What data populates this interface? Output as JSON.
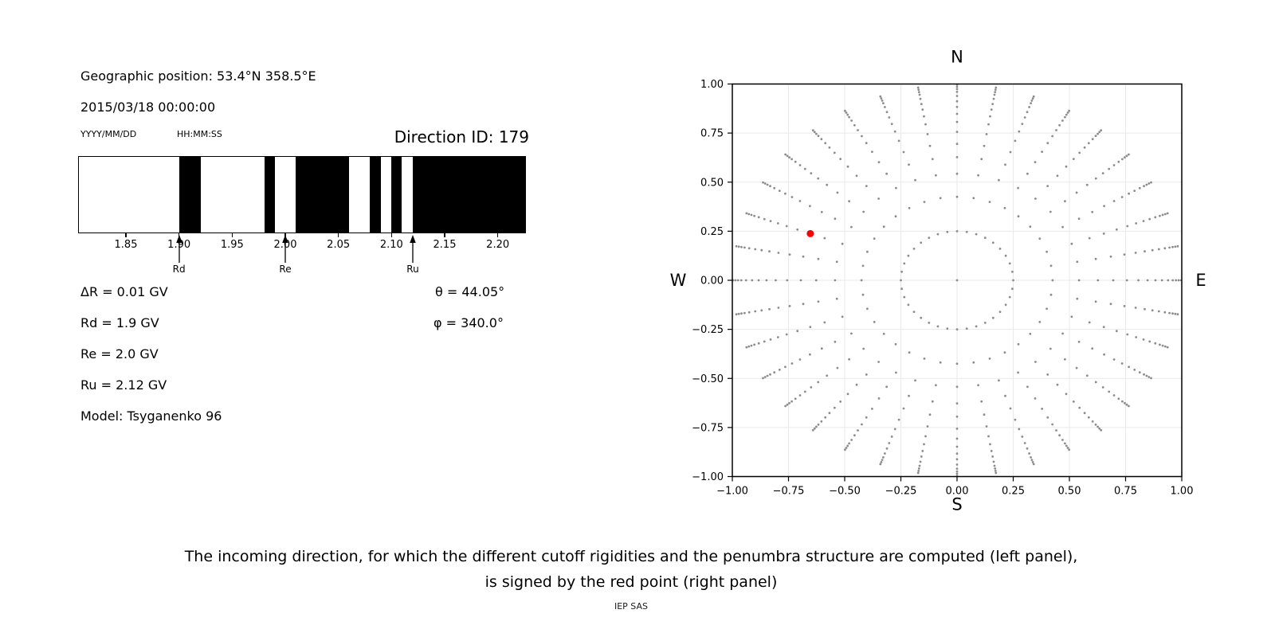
{
  "header": {
    "geographic_position": "Geographic position: 53.4°N 358.5°E",
    "datetime": "2015/03/18 00:00:00",
    "date_format_label": "YYYY/MM/DD",
    "time_format_label": "HH:MM:SS",
    "direction_id": "Direction ID: 179"
  },
  "info": {
    "delta_r": "ΔR = 0.01 GV",
    "rd": "Rd = 1.9 GV",
    "re": "Re = 2.0 GV",
    "ru": "Ru = 2.12 GV",
    "model": "Model: Tsyganenko 96",
    "theta": "θ = 44.05°",
    "phi": "φ = 340.0°"
  },
  "caption": {
    "line1": "The incoming direction, for which the different cutoff rigidities and the penumbra structure are computed (left panel),",
    "line2": "is signed by the red point (right panel)",
    "credit": "IEP SAS"
  },
  "colors": {
    "band_black": "#000000",
    "dot_gray": "#8c8c8c",
    "red_point": "#ff0000",
    "grid": "#e9e9e9",
    "spine": "#000000"
  },
  "chart_data": [
    {
      "id": "penumbra",
      "type": "bar",
      "xlim": [
        1.805,
        2.2265
      ],
      "xticks": [
        {
          "v": 1.85,
          "label": "1.85"
        },
        {
          "v": 1.9,
          "label": "1.90"
        },
        {
          "v": 1.95,
          "label": "1.95"
        },
        {
          "v": 2.0,
          "label": "2.00"
        },
        {
          "v": 2.05,
          "label": "2.05"
        },
        {
          "v": 2.1,
          "label": "2.10"
        },
        {
          "v": 2.15,
          "label": "2.15"
        },
        {
          "v": 2.2,
          "label": "2.20"
        }
      ],
      "black_intervals": [
        [
          1.9,
          1.92
        ],
        [
          1.98,
          1.99
        ],
        [
          2.01,
          2.06
        ],
        [
          2.08,
          2.09
        ],
        [
          2.1,
          2.11
        ],
        [
          2.12,
          2.2265
        ]
      ],
      "markers": [
        {
          "label": "Rd",
          "value": 1.9
        },
        {
          "label": "Re",
          "value": 2.0
        },
        {
          "label": "Ru",
          "value": 2.12
        }
      ]
    },
    {
      "id": "direction-map",
      "type": "scatter",
      "xlim": [
        -1.0,
        1.0
      ],
      "ylim": [
        -1.0,
        1.0
      ],
      "grid": true,
      "xticks": [
        {
          "v": -1.0,
          "label": "−1.00"
        },
        {
          "v": -0.75,
          "label": "−0.75"
        },
        {
          "v": -0.5,
          "label": "−0.50"
        },
        {
          "v": -0.25,
          "label": "−0.25"
        },
        {
          "v": 0.0,
          "label": "0.00"
        },
        {
          "v": 0.25,
          "label": "0.25"
        },
        {
          "v": 0.5,
          "label": "0.50"
        },
        {
          "v": 0.75,
          "label": "0.75"
        },
        {
          "v": 1.0,
          "label": "1.00"
        }
      ],
      "yticks": [
        {
          "v": 1.0,
          "label": "1.00"
        },
        {
          "v": 0.75,
          "label": "0.75"
        },
        {
          "v": 0.5,
          "label": "0.50"
        },
        {
          "v": 0.25,
          "label": "0.25"
        },
        {
          "v": 0.0,
          "label": "0.00"
        },
        {
          "v": -0.25,
          "label": "−0.25"
        },
        {
          "v": -0.5,
          "label": "−0.50"
        },
        {
          "v": -0.75,
          "label": "−0.75"
        },
        {
          "v": -1.0,
          "label": "−1.00"
        }
      ],
      "compass": {
        "top": "N",
        "right": "E",
        "bottom": "S",
        "left": "W"
      },
      "center_point": [
        0,
        0
      ],
      "azimuth_step_deg": 10,
      "ring_radii": [
        0.25,
        0.425,
        0.543,
        0.627,
        0.695,
        0.756,
        0.807,
        0.848,
        0.883,
        0.912,
        0.939,
        0.96,
        0.974,
        0.986,
        0.997
      ],
      "red_point": {
        "x": -0.653,
        "y": 0.238,
        "theta_deg": 44.05,
        "phi_deg": 340.0
      }
    }
  ]
}
